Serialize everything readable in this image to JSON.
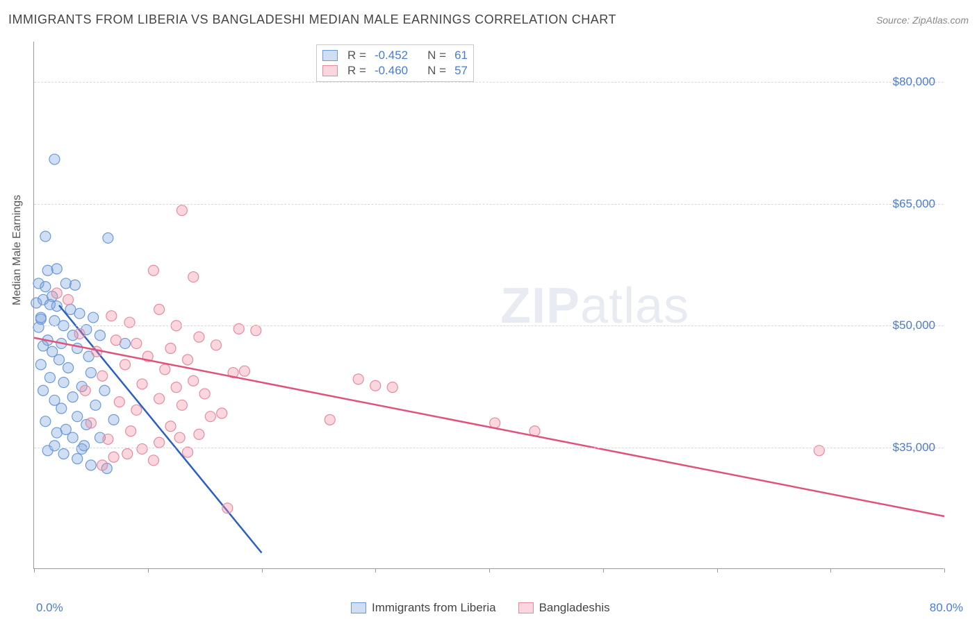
{
  "header": {
    "title": "IMMIGRANTS FROM LIBERIA VS BANGLADESHI MEDIAN MALE EARNINGS CORRELATION CHART",
    "source_label": "Source: ",
    "source_name": "ZipAtlas.com"
  },
  "axes": {
    "y_title": "Median Male Earnings",
    "x_min_label": "0.0%",
    "x_max_label": "80.0%",
    "x_domain": [
      0,
      80
    ],
    "y_domain": [
      20000,
      85000
    ],
    "y_ticks": [
      35000,
      50000,
      65000,
      80000
    ],
    "y_tick_labels": [
      "$35,000",
      "$50,000",
      "$65,000",
      "$80,000"
    ],
    "x_tick_count": 9,
    "grid_color": "#d8d8d8",
    "axis_color": "#999999"
  },
  "series": [
    {
      "name": "Immigrants from Liberia",
      "legend_label": "Immigrants from Liberia",
      "fill": "rgba(120,160,220,0.35)",
      "stroke": "#6a99d8",
      "line_stroke": "#2a5fc4",
      "line_width": 2.5,
      "R": "-0.452",
      "N": "61",
      "trend": {
        "x1": 2.2,
        "y1": 52500,
        "x2": 20,
        "y2": 22000
      },
      "points": [
        [
          1.8,
          70500
        ],
        [
          1.0,
          61000
        ],
        [
          6.5,
          60800
        ],
        [
          1.2,
          56800
        ],
        [
          2.0,
          57000
        ],
        [
          0.4,
          55200
        ],
        [
          1.0,
          54800
        ],
        [
          2.8,
          55200
        ],
        [
          3.6,
          55000
        ],
        [
          1.6,
          53600
        ],
        [
          0.8,
          53200
        ],
        [
          0.2,
          52800
        ],
        [
          1.4,
          52600
        ],
        [
          2.0,
          52400
        ],
        [
          3.2,
          52000
        ],
        [
          4.0,
          51500
        ],
        [
          5.2,
          51000
        ],
        [
          0.6,
          50800
        ],
        [
          1.8,
          50600
        ],
        [
          2.6,
          50000
        ],
        [
          0.4,
          49800
        ],
        [
          4.6,
          49500
        ],
        [
          3.4,
          48800
        ],
        [
          5.8,
          48800
        ],
        [
          1.2,
          48200
        ],
        [
          2.4,
          47800
        ],
        [
          0.8,
          47500
        ],
        [
          3.8,
          47200
        ],
        [
          1.6,
          46800
        ],
        [
          4.8,
          46200
        ],
        [
          2.2,
          45800
        ],
        [
          0.6,
          45200
        ],
        [
          3.0,
          44800
        ],
        [
          5.0,
          44200
        ],
        [
          1.4,
          43600
        ],
        [
          2.6,
          43000
        ],
        [
          4.2,
          42500
        ],
        [
          0.8,
          42000
        ],
        [
          3.4,
          41200
        ],
        [
          1.8,
          40800
        ],
        [
          5.4,
          40200
        ],
        [
          2.4,
          39800
        ],
        [
          3.8,
          38800
        ],
        [
          1.0,
          38200
        ],
        [
          4.6,
          37800
        ],
        [
          2.0,
          36800
        ],
        [
          3.4,
          36200
        ],
        [
          5.8,
          36200
        ],
        [
          1.8,
          35200
        ],
        [
          4.2,
          34800
        ],
        [
          2.6,
          34200
        ],
        [
          3.8,
          33600
        ],
        [
          1.2,
          34600
        ],
        [
          5.0,
          32800
        ],
        [
          6.4,
          32400
        ],
        [
          4.4,
          35200
        ],
        [
          2.8,
          37200
        ],
        [
          7.0,
          38400
        ],
        [
          0.6,
          51000
        ],
        [
          8.0,
          47800
        ],
        [
          6.2,
          42000
        ]
      ]
    },
    {
      "name": "Bangladeshis",
      "legend_label": "Bangladeshis",
      "fill": "rgba(240,140,160,0.35)",
      "stroke": "#e68aa0",
      "line_stroke": "#e0527a",
      "line_width": 2.5,
      "R": "-0.460",
      "N": "57",
      "trend": {
        "x1": 0,
        "y1": 48500,
        "x2": 80,
        "y2": 26500
      },
      "points": [
        [
          13.0,
          64200
        ],
        [
          10.5,
          56800
        ],
        [
          14.0,
          56000
        ],
        [
          2.0,
          54000
        ],
        [
          3.0,
          53200
        ],
        [
          11.0,
          52000
        ],
        [
          6.8,
          51200
        ],
        [
          8.4,
          50400
        ],
        [
          12.5,
          50000
        ],
        [
          18.0,
          49600
        ],
        [
          19.5,
          49400
        ],
        [
          4.0,
          49000
        ],
        [
          14.5,
          48600
        ],
        [
          7.2,
          48200
        ],
        [
          9.0,
          47800
        ],
        [
          16.0,
          47600
        ],
        [
          12.0,
          47200
        ],
        [
          5.5,
          46800
        ],
        [
          10.0,
          46200
        ],
        [
          13.5,
          45800
        ],
        [
          8.0,
          45200
        ],
        [
          11.5,
          44600
        ],
        [
          17.5,
          44200
        ],
        [
          6.0,
          43800
        ],
        [
          14.0,
          43200
        ],
        [
          9.5,
          42800
        ],
        [
          12.5,
          42400
        ],
        [
          18.5,
          44400
        ],
        [
          4.5,
          42000
        ],
        [
          15.0,
          41600
        ],
        [
          11.0,
          41000
        ],
        [
          7.5,
          40600
        ],
        [
          13.0,
          40200
        ],
        [
          9.0,
          39600
        ],
        [
          16.5,
          39200
        ],
        [
          28.5,
          43400
        ],
        [
          30.0,
          42600
        ],
        [
          31.5,
          42400
        ],
        [
          26.0,
          38400
        ],
        [
          5.0,
          38000
        ],
        [
          12.0,
          37600
        ],
        [
          8.5,
          37000
        ],
        [
          14.5,
          36600
        ],
        [
          6.5,
          36000
        ],
        [
          11.0,
          35600
        ],
        [
          44.0,
          37000
        ],
        [
          9.5,
          34800
        ],
        [
          13.5,
          34400
        ],
        [
          7.0,
          33800
        ],
        [
          10.5,
          33400
        ],
        [
          6.0,
          32800
        ],
        [
          40.5,
          38000
        ],
        [
          69.0,
          34600
        ],
        [
          15.5,
          38800
        ],
        [
          12.8,
          36200
        ],
        [
          8.2,
          34200
        ],
        [
          17.0,
          27500
        ]
      ]
    }
  ],
  "legend_top": {
    "R_prefix": "R = ",
    "N_prefix": "N = "
  },
  "watermark": {
    "part1": "ZIP",
    "part2": "atlas"
  },
  "colors": {
    "tick_text": "#4a7bd0",
    "title_text": "#444444",
    "source_text": "#888888"
  }
}
